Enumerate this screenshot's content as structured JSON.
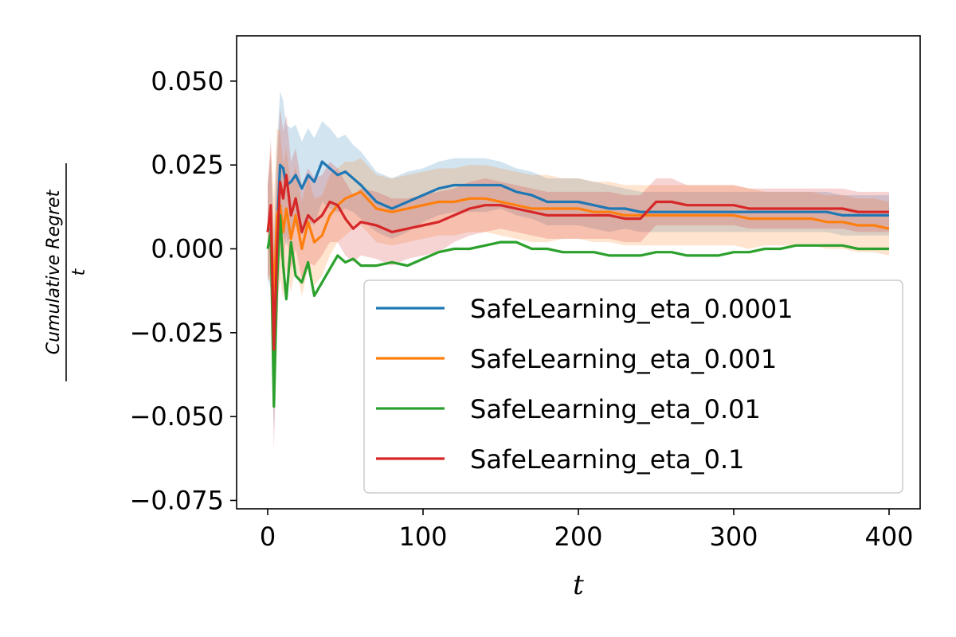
{
  "chart_data": {
    "type": "line",
    "title": "",
    "xlabel": "t",
    "ylabel_numerator": "Cumulative Regret",
    "ylabel_denominator": "t",
    "xlim": [
      -20,
      420
    ],
    "ylim": [
      -0.0775,
      0.0635
    ],
    "xticks": [
      0,
      100,
      200,
      300,
      400
    ],
    "xtick_labels": [
      "0",
      "100",
      "200",
      "300",
      "400"
    ],
    "yticks": [
      -0.075,
      -0.05,
      -0.025,
      0.0,
      0.025,
      0.05
    ],
    "ytick_labels": [
      "−0.075",
      "−0.050",
      "−0.025",
      "0.000",
      "0.025",
      "0.050"
    ],
    "grid": false,
    "legend_position": "lower-right",
    "x": [
      0,
      2,
      4,
      6,
      8,
      10,
      12,
      15,
      18,
      22,
      26,
      30,
      35,
      40,
      45,
      50,
      55,
      60,
      70,
      80,
      90,
      100,
      110,
      120,
      130,
      140,
      150,
      160,
      170,
      180,
      190,
      200,
      210,
      220,
      230,
      240,
      250,
      260,
      270,
      280,
      290,
      300,
      310,
      320,
      330,
      340,
      350,
      360,
      370,
      380,
      390,
      400
    ],
    "series": [
      {
        "name": "SafeLearning_eta_0.0001",
        "color": "#1f77b4",
        "values": [
          0.005,
          0.008,
          -0.025,
          0.005,
          0.025,
          0.024,
          0.019,
          0.02,
          0.022,
          0.018,
          0.022,
          0.02,
          0.026,
          0.024,
          0.022,
          0.023,
          0.021,
          0.019,
          0.014,
          0.012,
          0.014,
          0.016,
          0.018,
          0.019,
          0.019,
          0.019,
          0.019,
          0.017,
          0.016,
          0.014,
          0.014,
          0.014,
          0.013,
          0.012,
          0.012,
          0.011,
          0.011,
          0.011,
          0.011,
          0.011,
          0.011,
          0.011,
          0.011,
          0.011,
          0.011,
          0.011,
          0.011,
          0.011,
          0.01,
          0.01,
          0.01,
          0.01
        ],
        "band": [
          0.014,
          0.02,
          0.03,
          0.026,
          0.022,
          0.02,
          0.018,
          0.016,
          0.015,
          0.014,
          0.014,
          0.013,
          0.012,
          0.012,
          0.011,
          0.011,
          0.01,
          0.01,
          0.009,
          0.009,
          0.009,
          0.008,
          0.008,
          0.008,
          0.008,
          0.008,
          0.007,
          0.007,
          0.007,
          0.007,
          0.007,
          0.007,
          0.007,
          0.007,
          0.006,
          0.006,
          0.006,
          0.006,
          0.006,
          0.006,
          0.006,
          0.006,
          0.006,
          0.006,
          0.006,
          0.006,
          0.006,
          0.006,
          0.006,
          0.006,
          0.006,
          0.006
        ]
      },
      {
        "name": "SafeLearning_eta_0.001",
        "color": "#ff7f0e",
        "values": [
          0.005,
          0.01,
          -0.015,
          0.01,
          0.013,
          0.005,
          0.012,
          0.003,
          0.01,
          0.0,
          0.008,
          0.002,
          0.004,
          0.01,
          0.013,
          0.015,
          0.016,
          0.017,
          0.012,
          0.011,
          0.012,
          0.013,
          0.014,
          0.014,
          0.015,
          0.015,
          0.014,
          0.013,
          0.012,
          0.012,
          0.012,
          0.012,
          0.011,
          0.011,
          0.01,
          0.01,
          0.01,
          0.01,
          0.01,
          0.01,
          0.01,
          0.01,
          0.009,
          0.009,
          0.009,
          0.009,
          0.009,
          0.008,
          0.008,
          0.007,
          0.007,
          0.006
        ],
        "band": [
          0.014,
          0.02,
          0.03,
          0.026,
          0.022,
          0.02,
          0.018,
          0.016,
          0.015,
          0.014,
          0.014,
          0.013,
          0.012,
          0.012,
          0.011,
          0.011,
          0.01,
          0.01,
          0.01,
          0.01,
          0.01,
          0.01,
          0.01,
          0.01,
          0.01,
          0.01,
          0.01,
          0.01,
          0.01,
          0.01,
          0.009,
          0.009,
          0.009,
          0.009,
          0.009,
          0.009,
          0.009,
          0.009,
          0.009,
          0.009,
          0.009,
          0.009,
          0.009,
          0.008,
          0.008,
          0.008,
          0.008,
          0.008,
          0.008,
          0.008,
          0.008,
          0.008
        ]
      },
      {
        "name": "SafeLearning_eta_0.01",
        "color": "#2ca02c",
        "values": [
          0.0,
          0.005,
          -0.047,
          -0.01,
          0.01,
          -0.005,
          -0.015,
          0.002,
          -0.008,
          -0.01,
          -0.004,
          -0.014,
          -0.01,
          -0.006,
          -0.002,
          -0.004,
          -0.003,
          -0.005,
          -0.005,
          -0.004,
          -0.005,
          -0.003,
          -0.001,
          0.0,
          0.0,
          0.001,
          0.002,
          0.002,
          0.0,
          0.0,
          -0.001,
          -0.001,
          -0.001,
          -0.002,
          -0.002,
          -0.002,
          -0.001,
          -0.001,
          -0.002,
          -0.002,
          -0.002,
          -0.001,
          -0.001,
          0.0,
          0.0,
          0.001,
          0.001,
          0.001,
          0.001,
          0.0,
          0.0,
          0.0
        ],
        "band": null
      },
      {
        "name": "SafeLearning_eta_0.1",
        "color": "#d62728",
        "values": [
          0.005,
          0.013,
          -0.03,
          0.0,
          0.02,
          0.015,
          0.022,
          0.01,
          0.015,
          0.005,
          0.01,
          0.008,
          0.01,
          0.014,
          0.013,
          0.009,
          0.006,
          0.008,
          0.007,
          0.005,
          0.006,
          0.007,
          0.008,
          0.01,
          0.012,
          0.013,
          0.013,
          0.012,
          0.011,
          0.01,
          0.01,
          0.01,
          0.01,
          0.01,
          0.009,
          0.009,
          0.014,
          0.014,
          0.013,
          0.013,
          0.013,
          0.013,
          0.012,
          0.012,
          0.012,
          0.012,
          0.012,
          0.012,
          0.012,
          0.011,
          0.011,
          0.011
        ],
        "band": [
          0.014,
          0.02,
          0.03,
          0.026,
          0.022,
          0.02,
          0.018,
          0.016,
          0.015,
          0.014,
          0.014,
          0.013,
          0.012,
          0.012,
          0.011,
          0.011,
          0.01,
          0.01,
          0.01,
          0.01,
          0.009,
          0.009,
          0.009,
          0.008,
          0.008,
          0.008,
          0.007,
          0.007,
          0.007,
          0.007,
          0.007,
          0.007,
          0.007,
          0.007,
          0.007,
          0.007,
          0.007,
          0.007,
          0.006,
          0.006,
          0.006,
          0.006,
          0.006,
          0.006,
          0.006,
          0.006,
          0.006,
          0.006,
          0.006,
          0.006,
          0.006,
          0.006
        ]
      }
    ]
  }
}
